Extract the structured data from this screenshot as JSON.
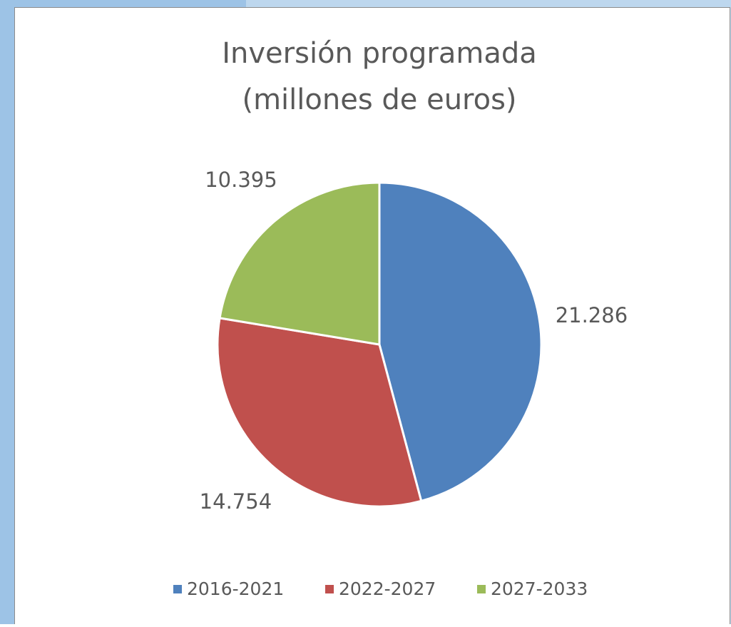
{
  "chart_data": {
    "type": "pie",
    "title": [
      "Inversión programada",
      "(millones de euros)"
    ],
    "categories": [
      "2016-2021",
      "2022-2027",
      "2027-2033"
    ],
    "values": [
      21286,
      14754,
      10395
    ],
    "value_labels": [
      "21.286",
      "14.754",
      "10.395"
    ],
    "colors": [
      "#4f81bd",
      "#c0504d",
      "#9bbb59"
    ],
    "legend": "bottom"
  }
}
